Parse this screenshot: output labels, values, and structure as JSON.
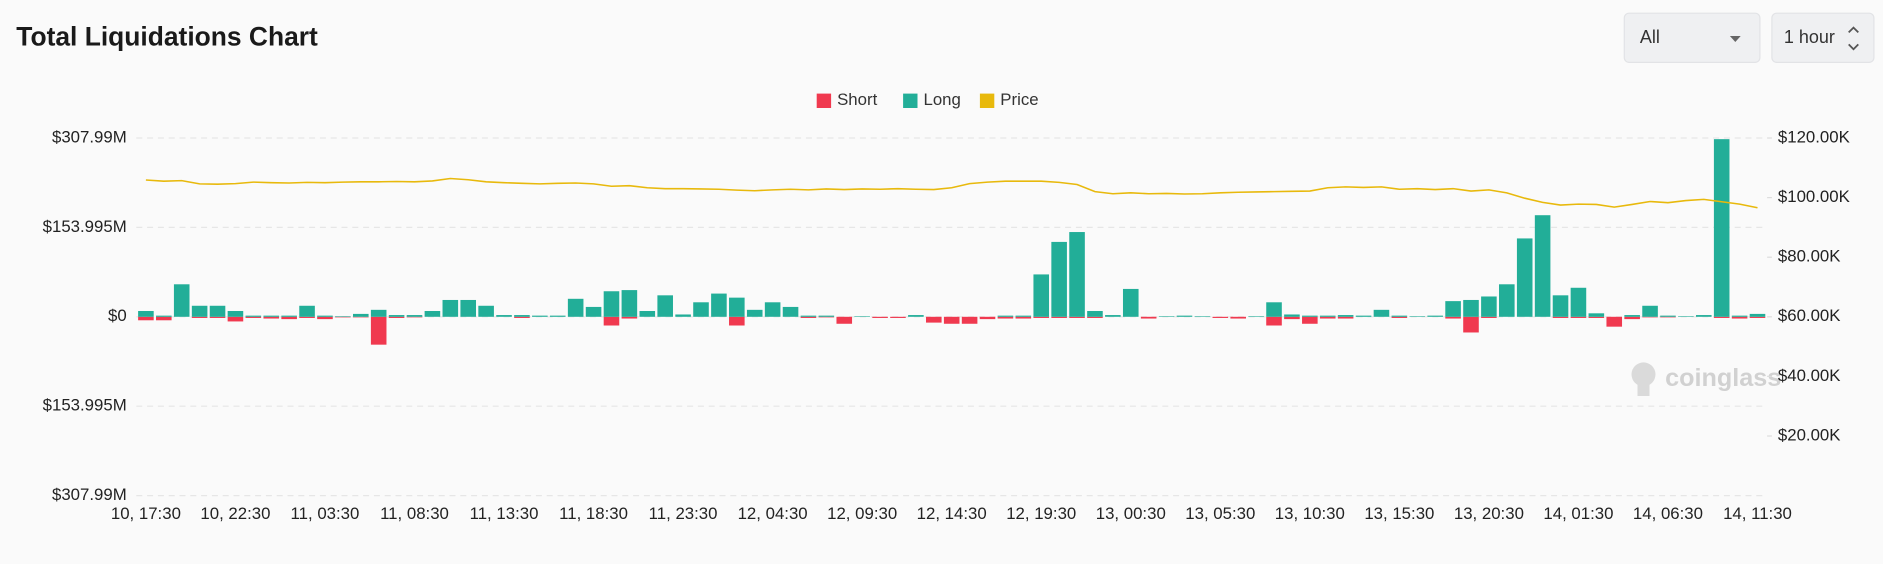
{
  "controls": {
    "market": "All",
    "interval": "1 hour"
  },
  "watermark": "coinglass",
  "chart_data": {
    "type": "bar",
    "title": "Total Liquidations Chart",
    "categories": [
      "10, 17:30",
      null,
      null,
      null,
      null,
      "10, 22:30",
      null,
      null,
      null,
      null,
      "11, 03:30",
      null,
      null,
      null,
      null,
      "11, 08:30",
      null,
      null,
      null,
      null,
      "11, 13:30",
      null,
      null,
      null,
      null,
      "11, 18:30",
      null,
      null,
      null,
      null,
      "11, 23:30",
      null,
      null,
      null,
      null,
      "12, 04:30",
      null,
      null,
      null,
      null,
      "12, 09:30",
      null,
      null,
      null,
      null,
      "12, 14:30",
      null,
      null,
      null,
      null,
      "12, 19:30",
      null,
      null,
      null,
      null,
      "13, 00:30",
      null,
      null,
      null,
      null,
      "13, 05:30",
      null,
      null,
      null,
      null,
      "13, 10:30",
      null,
      null,
      null,
      null,
      "13, 15:30",
      null,
      null,
      null,
      null,
      "13, 20:30",
      null,
      null,
      null,
      null,
      "14, 01:30",
      null,
      null,
      null,
      null,
      "14, 06:30",
      null,
      null,
      null,
      null,
      "14, 11:30"
    ],
    "series": [
      {
        "name": "Short",
        "color": "#f0394f",
        "values": [
          -6,
          -6,
          0,
          -2,
          -2,
          -8,
          -2,
          -3,
          -4,
          -2,
          -4,
          -1,
          -1,
          -48,
          -2,
          -1,
          0,
          0,
          0,
          0,
          0,
          -2,
          0,
          0,
          0,
          0,
          -15,
          -3,
          0,
          0,
          0,
          0,
          0,
          -15,
          0,
          0,
          0,
          -2,
          -1,
          -12,
          0,
          -2,
          -2,
          0,
          -10,
          -12,
          -12,
          -4,
          -3,
          -3,
          -2,
          -2,
          -2,
          -2,
          0,
          0,
          -3,
          0,
          0,
          0,
          -2,
          -3,
          0,
          -15,
          -4,
          -12,
          -3,
          -3,
          0,
          0,
          -2,
          0,
          0,
          -3,
          -27,
          -2,
          0,
          0,
          0,
          -2,
          -2,
          -2,
          -17,
          -4,
          -1,
          -1,
          0,
          0,
          -2,
          -3,
          -2
        ]
      },
      {
        "name": "Long",
        "color": "#22ae98",
        "values": [
          10,
          2,
          56,
          19,
          19,
          10,
          2,
          2,
          2,
          19,
          2,
          1,
          5,
          12,
          3,
          3,
          10,
          29,
          29,
          19,
          3,
          3,
          2,
          2,
          31,
          17,
          44,
          46,
          10,
          37,
          4,
          25,
          40,
          33,
          12,
          25,
          17,
          2,
          2,
          0,
          1,
          0,
          0,
          3,
          0,
          0,
          0,
          0,
          2,
          2,
          73,
          129,
          146,
          10,
          3,
          48,
          0,
          1,
          2,
          1,
          0,
          0,
          1,
          25,
          4,
          2,
          2,
          3,
          2,
          12,
          2,
          1,
          2,
          27,
          29,
          35,
          56,
          135,
          175,
          37,
          50,
          6,
          0,
          3,
          19,
          2,
          1,
          3,
          306,
          2,
          5
        ]
      },
      {
        "name": "Price",
        "color": "#e8b90c",
        "type": "line",
        "axis": "y2",
        "values": [
          105900,
          105500,
          105700,
          104600,
          104500,
          104700,
          105200,
          105000,
          104900,
          105100,
          105000,
          105200,
          105300,
          105300,
          105400,
          105300,
          105600,
          106400,
          106000,
          105300,
          105000,
          104800,
          104600,
          104800,
          104900,
          104600,
          103800,
          104000,
          103300,
          103000,
          103000,
          102900,
          102800,
          102500,
          102300,
          102600,
          102800,
          102600,
          102900,
          102700,
          102900,
          102800,
          103000,
          102800,
          102700,
          103300,
          104700,
          105200,
          105500,
          105500,
          105500,
          105100,
          104400,
          102000,
          101300,
          101600,
          101300,
          101400,
          101200,
          101300,
          101600,
          101800,
          101900,
          102000,
          102100,
          102200,
          103300,
          103600,
          103400,
          103600,
          102800,
          103000,
          102700,
          103000,
          102200,
          102600,
          101600,
          99800,
          98400,
          97500,
          97800,
          97700,
          96800,
          97700,
          98700,
          98300,
          99000,
          99400,
          98600,
          97800,
          96600
        ]
      }
    ],
    "ylim": [
      -307.99,
      307.99
    ],
    "yticks": [
      {
        "value": -307.99,
        "label": "$307.99M"
      },
      {
        "value": -153.995,
        "label": "$153.995M"
      },
      {
        "value": 0,
        "label": "$0"
      },
      {
        "value": 153.995,
        "label": "$153.995M"
      },
      {
        "value": 307.99,
        "label": "$307.99M"
      }
    ],
    "y2lim": [
      0,
      120000
    ],
    "y2ticks": [
      {
        "value": 20000,
        "label": "$20.00K"
      },
      {
        "value": 40000,
        "label": "$40.00K"
      },
      {
        "value": 60000,
        "label": "$60.00K"
      },
      {
        "value": 80000,
        "label": "$80.00K"
      },
      {
        "value": 100000,
        "label": "$100.00K"
      },
      {
        "value": 120000,
        "label": "$120.00K"
      }
    ],
    "grid": true,
    "legend": "top"
  }
}
